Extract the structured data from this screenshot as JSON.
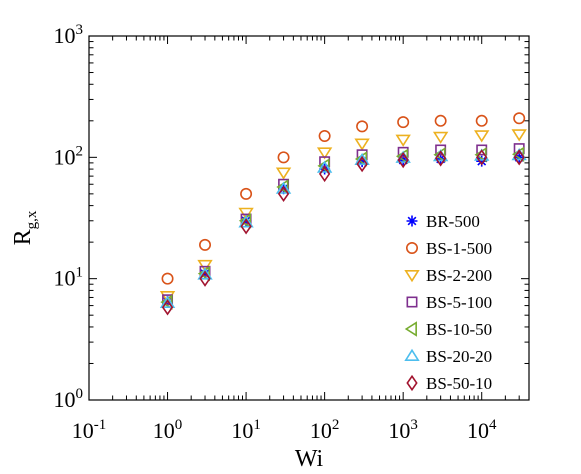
{
  "chart_data": {
    "type": "scatter",
    "x_scale": "log",
    "y_scale": "log",
    "xlim": [
      0.1,
      40000
    ],
    "ylim": [
      1,
      1000
    ],
    "xlabel": "Wi",
    "ylabel": {
      "main": "R",
      "sub": "g,x"
    },
    "x_ticks": [
      {
        "base": "10",
        "exp": "-1",
        "value": 0.1
      },
      {
        "base": "10",
        "exp": "0",
        "value": 1
      },
      {
        "base": "10",
        "exp": "1",
        "value": 10
      },
      {
        "base": "10",
        "exp": "2",
        "value": 100
      },
      {
        "base": "10",
        "exp": "3",
        "value": 1000
      },
      {
        "base": "10",
        "exp": "4",
        "value": 10000
      }
    ],
    "y_ticks": [
      {
        "base": "10",
        "exp": "0",
        "value": 1
      },
      {
        "base": "10",
        "exp": "1",
        "value": 10
      },
      {
        "base": "10",
        "exp": "2",
        "value": 100
      },
      {
        "base": "10",
        "exp": "3",
        "value": 1000
      }
    ],
    "grid": false,
    "legend_position": "right",
    "x": [
      1,
      3,
      10,
      30,
      100,
      300,
      1000,
      3000,
      10000,
      30000
    ],
    "series": [
      {
        "name": "BR-500",
        "marker": "asterisk",
        "color": "#0000ff",
        "values": [
          6.5,
          11,
          30,
          55,
          80,
          92,
          95,
          97,
          93,
          100
        ]
      },
      {
        "name": "BS-1-500",
        "marker": "circle",
        "color": "#d95319",
        "values": [
          10,
          19,
          50,
          100,
          150,
          180,
          195,
          200,
          200,
          210
        ]
      },
      {
        "name": "BS-2-200",
        "marker": "triangle-down",
        "color": "#edb120",
        "values": [
          7.2,
          13,
          35,
          75,
          110,
          130,
          140,
          148,
          152,
          155
        ]
      },
      {
        "name": "BS-5-100",
        "marker": "square",
        "color": "#7e2f8e",
        "values": [
          6.7,
          11.5,
          31,
          60,
          92,
          105,
          110,
          115,
          115,
          118
        ]
      },
      {
        "name": "BS-10-50",
        "marker": "triangle-left",
        "color": "#77ac30",
        "values": [
          6.4,
          11,
          30,
          57,
          85,
          97,
          102,
          105,
          105,
          106
        ]
      },
      {
        "name": "BS-20-20",
        "marker": "triangle-up",
        "color": "#4dbeee",
        "values": [
          6.3,
          10.8,
          29,
          55,
          82,
          95,
          99,
          102,
          103,
          104
        ]
      },
      {
        "name": "BS-50-10",
        "marker": "diamond",
        "color": "#a2142f",
        "values": [
          5.8,
          10,
          27,
          50,
          73,
          88,
          95,
          98,
          100,
          100
        ]
      }
    ]
  }
}
